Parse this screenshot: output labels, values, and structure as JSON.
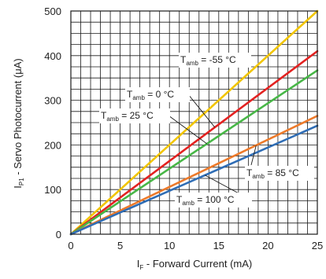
{
  "chart_data": {
    "type": "line",
    "xlabel_main": "I",
    "xlabel_sub": "F",
    "xlabel_rest": " - Forward Current (mA)",
    "ylabel_main": "I",
    "ylabel_sub": "P1",
    "ylabel_rest": " - Servo Photocurrent (μA)",
    "xlim": [
      0,
      25
    ],
    "ylim": [
      0,
      500
    ],
    "x_ticks": [
      0,
      5,
      10,
      15,
      20,
      25
    ],
    "y_ticks": [
      0,
      100,
      200,
      300,
      400,
      500
    ],
    "grid": true,
    "series": [
      {
        "name": "Tamb = -55 °C",
        "label_main": "T",
        "label_sub": "amb",
        "label_rest": " = -55 °C",
        "color": "#f2c500",
        "x": [
          0,
          25
        ],
        "y": [
          0,
          500
        ]
      },
      {
        "name": "Tamb = 0 °C",
        "label_main": "T",
        "label_sub": "amb",
        "label_rest": " = 0 °C",
        "color": "#e32221",
        "x": [
          0,
          25
        ],
        "y": [
          0,
          410
        ]
      },
      {
        "name": "Tamb = 25 °C",
        "label_main": "T",
        "label_sub": "amb",
        "label_rest": " = 25 °C",
        "color": "#48b747",
        "x": [
          0,
          25
        ],
        "y": [
          0,
          367
        ]
      },
      {
        "name": "Tamb = 85 °C",
        "label_main": "T",
        "label_sub": "amb",
        "label_rest": " = 85 °C",
        "color": "#ed7a2a",
        "x": [
          0,
          25
        ],
        "y": [
          0,
          265
        ]
      },
      {
        "name": "Tamb = 100 °C",
        "label_main": "T",
        "label_sub": "amb",
        "label_rest": " = 100 °C",
        "color": "#2f6db5",
        "x": [
          0,
          25
        ],
        "y": [
          0,
          243
        ]
      }
    ]
  }
}
